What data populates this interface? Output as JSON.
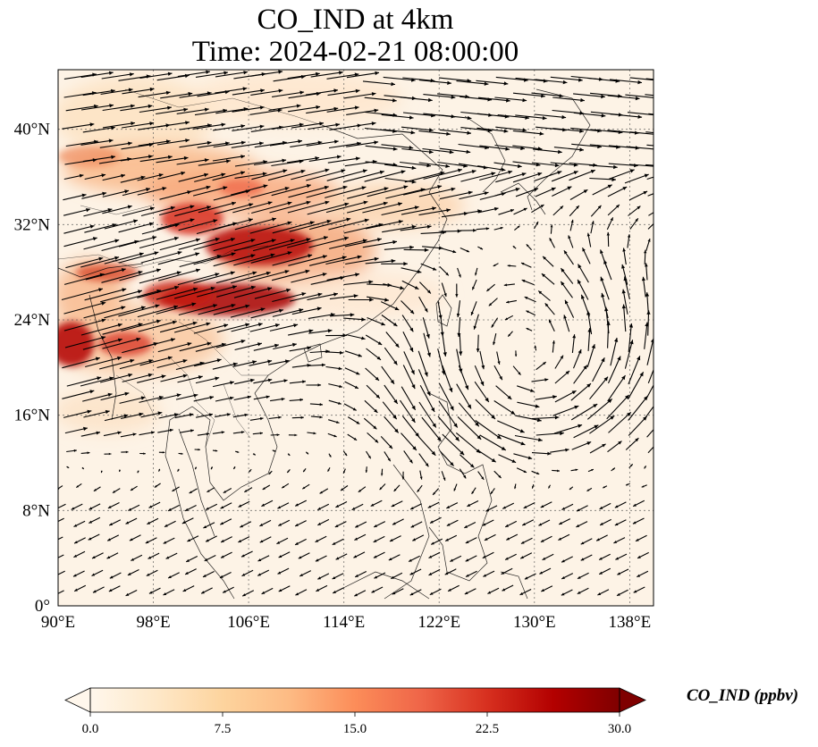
{
  "title_line1": "CO_IND at 4km",
  "title_line2": "Time: 2024-02-21 08:00:00",
  "map": {
    "projection": "PlateCarree",
    "lon_range": [
      90,
      140
    ],
    "lat_range": [
      0,
      45
    ],
    "lon_ticks": [
      {
        "value": 90,
        "label": "90°E"
      },
      {
        "value": 98,
        "label": "98°E"
      },
      {
        "value": 106,
        "label": "106°E"
      },
      {
        "value": 114,
        "label": "114°E"
      },
      {
        "value": 122,
        "label": "122°E"
      },
      {
        "value": 130,
        "label": "130°E"
      },
      {
        "value": 138,
        "label": "138°E"
      }
    ],
    "lat_ticks": [
      {
        "value": 0,
        "label": "0°"
      },
      {
        "value": 8,
        "label": "8°N"
      },
      {
        "value": 16,
        "label": "16°N"
      },
      {
        "value": 24,
        "label": "24°N"
      },
      {
        "value": 32,
        "label": "32°N"
      },
      {
        "value": 40,
        "label": "40°N"
      }
    ],
    "gridlines": "dotted",
    "vectors": "wind",
    "anticyclone_center": [
      129.5,
      20.0
    ]
  },
  "colorbar": {
    "label": "CO_IND (ppbv)",
    "cmap": "OrRd",
    "min": 0,
    "max": 30,
    "extend": "both",
    "ticks": [
      "0.0",
      "7.5",
      "15.0",
      "22.5",
      "30.0"
    ],
    "colors": [
      "#fff7ec",
      "#fee8c8",
      "#fdd49e",
      "#fdbb84",
      "#fc8d59",
      "#ef6548",
      "#d7301f",
      "#b30000",
      "#7f0000"
    ]
  }
}
